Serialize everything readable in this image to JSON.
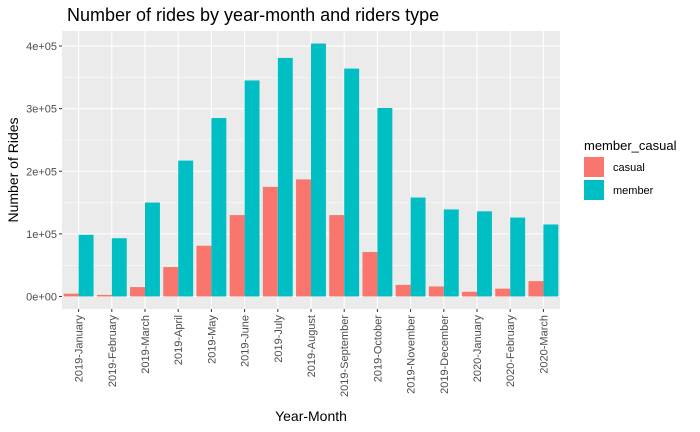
{
  "chart_data": {
    "type": "bar",
    "title": "Number of rides by year-month and riders type",
    "xlabel": "Year-Month",
    "ylabel": "Number of Rides",
    "categories": [
      "2019-January",
      "2019-February",
      "2019-March",
      "2019-April",
      "2019-May",
      "2019-June",
      "2019-July",
      "2019-August",
      "2019-September",
      "2019-October",
      "2019-November",
      "2019-December",
      "2020-January",
      "2020-February",
      "2020-March"
    ],
    "series": [
      {
        "name": "casual",
        "color": "#F8766D",
        "values": [
          4500,
          2500,
          15000,
          47000,
          81000,
          130000,
          175000,
          187000,
          130000,
          71000,
          18500,
          16000,
          7500,
          12500,
          24500
        ]
      },
      {
        "name": "member",
        "color": "#00BFC4",
        "values": [
          98500,
          93000,
          150000,
          217000,
          285000,
          345000,
          381000,
          404000,
          364000,
          301000,
          158000,
          139000,
          136000,
          126000,
          115000
        ]
      }
    ],
    "ylim": [
      -20000,
      424000
    ],
    "yticks": [
      0,
      100000,
      200000,
      300000,
      400000
    ],
    "ytick_labels": [
      "0e+00",
      "1e+05",
      "2e+05",
      "3e+05",
      "4e+05"
    ],
    "legend": {
      "title": "member_casual",
      "position": "right"
    },
    "grid": true,
    "panel_background": "#EBEBEB",
    "grid_color": "#FFFFFF"
  }
}
